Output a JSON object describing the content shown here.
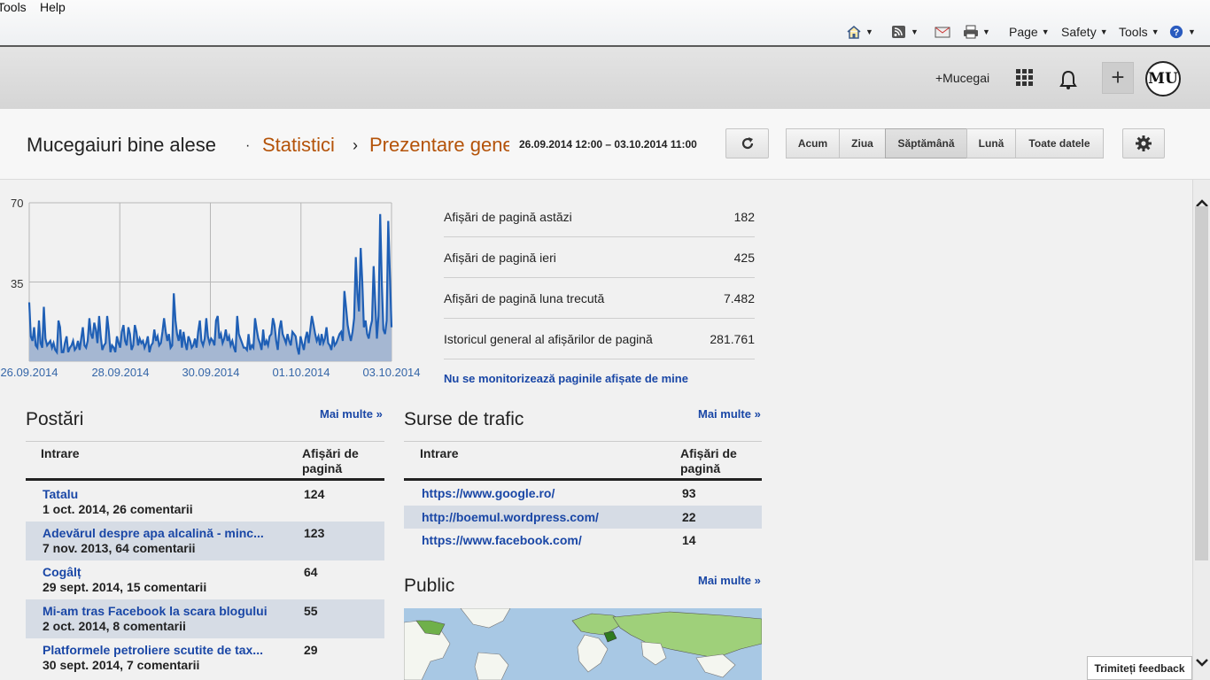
{
  "ie": {
    "menu": [
      "Tools",
      "Help"
    ],
    "commands": {
      "page": "Page",
      "safety": "Safety",
      "tools": "Tools"
    }
  },
  "topbar": {
    "account_name": "+Mucegai",
    "avatar_text": "MU"
  },
  "header": {
    "blog_title": "Mucegaiuri bine alese",
    "sep1": "·",
    "section": "Statistici",
    "sep2": "›",
    "subsection": "Prezentare generală",
    "date_range": "26.09.2014 12:00 – 03.10.2014 11:00",
    "ranges": [
      "Acum",
      "Ziua",
      "Săptămână",
      "Lună",
      "Toate datele"
    ],
    "active_range": "Săptămână"
  },
  "chart_data": {
    "type": "area",
    "x_tick_labels": [
      "26.09.2014",
      "28.09.2014",
      "30.09.2014",
      "01.10.2014",
      "03.10.2014"
    ],
    "y_ticks": [
      35,
      70
    ],
    "ylim": [
      0,
      70
    ],
    "color": "#1f5fb5",
    "fill": "#a5b7d2",
    "grid": true,
    "values": [
      26,
      11,
      9,
      15,
      7,
      6,
      18,
      8,
      6,
      24,
      10,
      7,
      8,
      9,
      6,
      8,
      5,
      4,
      18,
      15,
      4,
      4,
      8,
      11,
      4,
      6,
      7,
      9,
      5,
      6,
      9,
      5,
      10,
      15,
      7,
      6,
      9,
      19,
      12,
      10,
      17,
      14,
      8,
      20,
      11,
      5,
      7,
      8,
      20,
      13,
      4,
      7,
      6,
      4,
      11,
      8,
      6,
      13,
      16,
      9,
      7,
      15,
      12,
      5,
      7,
      16,
      13,
      7,
      10,
      8,
      9,
      6,
      8,
      11,
      4,
      7,
      8,
      14,
      9,
      11,
      7,
      8,
      13,
      19,
      13,
      9,
      12,
      6,
      7,
      30,
      18,
      12,
      9,
      14,
      6,
      13,
      8,
      5,
      11,
      9,
      6,
      7,
      10,
      6,
      13,
      18,
      9,
      7,
      10,
      19,
      11,
      8,
      10,
      9,
      7,
      18,
      20,
      10,
      12,
      8,
      10,
      14,
      9,
      11,
      7,
      9,
      6,
      4,
      20,
      12,
      10,
      8,
      6,
      6,
      5,
      12,
      5,
      7,
      6,
      19,
      14,
      10,
      8,
      5,
      14,
      7,
      9,
      7,
      11,
      12,
      19,
      16,
      9,
      5,
      14,
      18,
      12,
      10,
      8,
      12,
      9,
      7,
      13,
      12,
      11,
      6,
      3,
      11,
      8,
      5,
      10,
      13,
      8,
      14,
      20,
      16,
      12,
      9,
      11,
      7,
      12,
      8,
      10,
      15,
      8,
      7,
      5,
      11,
      7,
      8,
      10,
      12,
      13,
      9,
      31,
      24,
      16,
      12,
      9,
      13,
      19,
      46,
      30,
      22,
      50,
      35,
      15,
      18,
      12,
      10,
      15,
      18,
      42,
      25,
      10,
      20,
      65,
      35,
      14,
      12,
      18,
      62,
      38,
      15
    ]
  },
  "stats": [
    {
      "label": "Afișări de pagină astăzi",
      "value": "182"
    },
    {
      "label": "Afișări de pagină ieri",
      "value": "425"
    },
    {
      "label": "Afișări de pagină luna trecută",
      "value": "7.482"
    },
    {
      "label": "Istoricul general al afișărilor de pagină",
      "value": "281.761"
    }
  ],
  "no_track": "Nu se monitorizează paginile afișate de mine",
  "posts": {
    "title": "Postări",
    "more": "Mai multe »",
    "col_entry": "Intrare",
    "col_views_1": "Afișări de",
    "col_views_2": "pagină",
    "rows": [
      {
        "title": "Tatalu",
        "sub": "1 oct. 2014, 26 comentarii",
        "views": "124"
      },
      {
        "title": "Adevărul despre apa alcalină - minc...",
        "sub": "7 nov. 2013, 64 comentarii",
        "views": "123"
      },
      {
        "title": "Cogâlț",
        "sub": "29 sept. 2014, 15 comentarii",
        "views": "64"
      },
      {
        "title": "Mi-am tras Facebook la scara blogului",
        "sub": "2 oct. 2014, 8 comentarii",
        "views": "55"
      },
      {
        "title": "Platformele petroliere scutite de tax...",
        "sub": "30 sept. 2014, 7 comentarii",
        "views": "29"
      }
    ]
  },
  "traffic": {
    "title": "Surse de trafic",
    "more": "Mai multe »",
    "col_entry": "Intrare",
    "col_views_1": "Afișări de",
    "col_views_2": "pagină",
    "rows": [
      {
        "url": "https://www.google.ro/",
        "views": "93"
      },
      {
        "url": "http://boemul.wordpress.com/",
        "views": "22"
      },
      {
        "url": "https://www.facebook.com/",
        "views": "14"
      }
    ]
  },
  "public": {
    "title": "Public",
    "more": "Mai multe »"
  },
  "feedback": "Trimiteți feedback"
}
